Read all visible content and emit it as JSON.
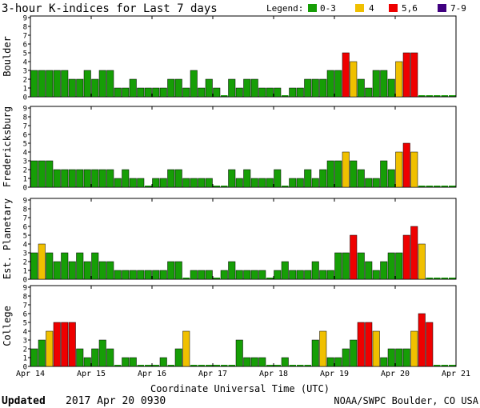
{
  "title": "3-hour K-indices for Last 7 days",
  "legend": {
    "label": "Legend:",
    "items": [
      {
        "label": "0-3",
        "color": "#169e06"
      },
      {
        "label": "4",
        "color": "#f0c000"
      },
      {
        "label": "5,6",
        "color": "#ee0000"
      },
      {
        "label": "7-9",
        "color": "#400080"
      }
    ]
  },
  "footer": {
    "updated_label": "Updated",
    "updated_value": "2017 Apr 20 0930",
    "source": "NOAA/SWPC Boulder, CO USA"
  },
  "chart_data": {
    "type": "bar",
    "title": "3-hour K-indices for Last 7 days",
    "xlabel": "Coordinate Universal Time (UTC)",
    "x_ticks": [
      "Apr 14",
      "Apr 15",
      "Apr 16",
      "Apr 17",
      "Apr 18",
      "Apr 19",
      "Apr 20",
      "Apr 21"
    ],
    "y_ticks": [
      "0",
      "1",
      "2",
      "3",
      "4",
      "5",
      "6",
      "7",
      "8",
      "9"
    ],
    "ylim": [
      0,
      9
    ],
    "grid": false,
    "categories": [
      "Apr 14 00-03",
      "Apr 14 03-06",
      "Apr 14 06-09",
      "Apr 14 09-12",
      "Apr 14 12-15",
      "Apr 14 15-18",
      "Apr 14 18-21",
      "Apr 14 21-24",
      "Apr 15 00-03",
      "Apr 15 03-06",
      "Apr 15 06-09",
      "Apr 15 09-12",
      "Apr 15 12-15",
      "Apr 15 15-18",
      "Apr 15 18-21",
      "Apr 15 21-24",
      "Apr 16 00-03",
      "Apr 16 03-06",
      "Apr 16 06-09",
      "Apr 16 09-12",
      "Apr 16 12-15",
      "Apr 16 15-18",
      "Apr 16 18-21",
      "Apr 16 21-24",
      "Apr 17 00-03",
      "Apr 17 03-06",
      "Apr 17 06-09",
      "Apr 17 09-12",
      "Apr 17 12-15",
      "Apr 17 15-18",
      "Apr 17 18-21",
      "Apr 17 21-24",
      "Apr 18 00-03",
      "Apr 18 03-06",
      "Apr 18 06-09",
      "Apr 18 09-12",
      "Apr 18 12-15",
      "Apr 18 15-18",
      "Apr 18 18-21",
      "Apr 18 21-24",
      "Apr 19 00-03",
      "Apr 19 03-06",
      "Apr 19 06-09",
      "Apr 19 09-12",
      "Apr 19 12-15",
      "Apr 19 15-18",
      "Apr 19 18-21",
      "Apr 19 21-24",
      "Apr 20 00-03",
      "Apr 20 03-06",
      "Apr 20 06-09",
      "Apr 20 09-12",
      "Apr 20 12-15",
      "Apr 20 15-18",
      "Apr 20 18-21",
      "Apr 20 21-24"
    ],
    "series": [
      {
        "name": "Boulder",
        "values": [
          3,
          3,
          3,
          3,
          3,
          2,
          2,
          3,
          2,
          3,
          3,
          1,
          1,
          2,
          1,
          1,
          1,
          1,
          2,
          2,
          1,
          3,
          1,
          2,
          1,
          0,
          2,
          1,
          2,
          2,
          1,
          1,
          1,
          0,
          1,
          1,
          2,
          2,
          2,
          3,
          3,
          5,
          4,
          2,
          1,
          3,
          3,
          2,
          4,
          5,
          5,
          0,
          0,
          0,
          0,
          0
        ]
      },
      {
        "name": "Fredericksburg",
        "values": [
          3,
          3,
          3,
          2,
          2,
          2,
          2,
          2,
          2,
          2,
          2,
          1,
          2,
          1,
          1,
          0,
          1,
          1,
          2,
          2,
          1,
          1,
          1,
          1,
          0,
          0,
          2,
          1,
          2,
          1,
          1,
          1,
          2,
          0,
          1,
          1,
          2,
          1,
          2,
          3,
          3,
          4,
          3,
          2,
          1,
          1,
          3,
          2,
          4,
          5,
          4,
          0,
          0,
          0,
          0,
          0
        ]
      },
      {
        "name": "Est. Planetary",
        "values": [
          3,
          4,
          3,
          2,
          3,
          2,
          3,
          2,
          3,
          2,
          2,
          1,
          1,
          1,
          1,
          1,
          1,
          1,
          2,
          2,
          0,
          1,
          1,
          1,
          0,
          1,
          2,
          1,
          1,
          1,
          1,
          0,
          1,
          2,
          1,
          1,
          1,
          2,
          1,
          1,
          3,
          3,
          5,
          3,
          2,
          1,
          2,
          3,
          3,
          5,
          6,
          4,
          0,
          0,
          0,
          0
        ]
      },
      {
        "name": "College",
        "values": [
          2,
          3,
          4,
          5,
          5,
          5,
          2,
          1,
          2,
          3,
          2,
          0,
          1,
          1,
          0,
          0,
          0,
          1,
          0,
          2,
          4,
          0,
          0,
          0,
          0,
          0,
          0,
          3,
          1,
          1,
          1,
          0,
          0,
          1,
          0,
          0,
          0,
          3,
          4,
          1,
          1,
          2,
          3,
          5,
          5,
          4,
          1,
          2,
          2,
          2,
          4,
          6,
          5,
          0,
          0,
          0
        ]
      }
    ]
  }
}
